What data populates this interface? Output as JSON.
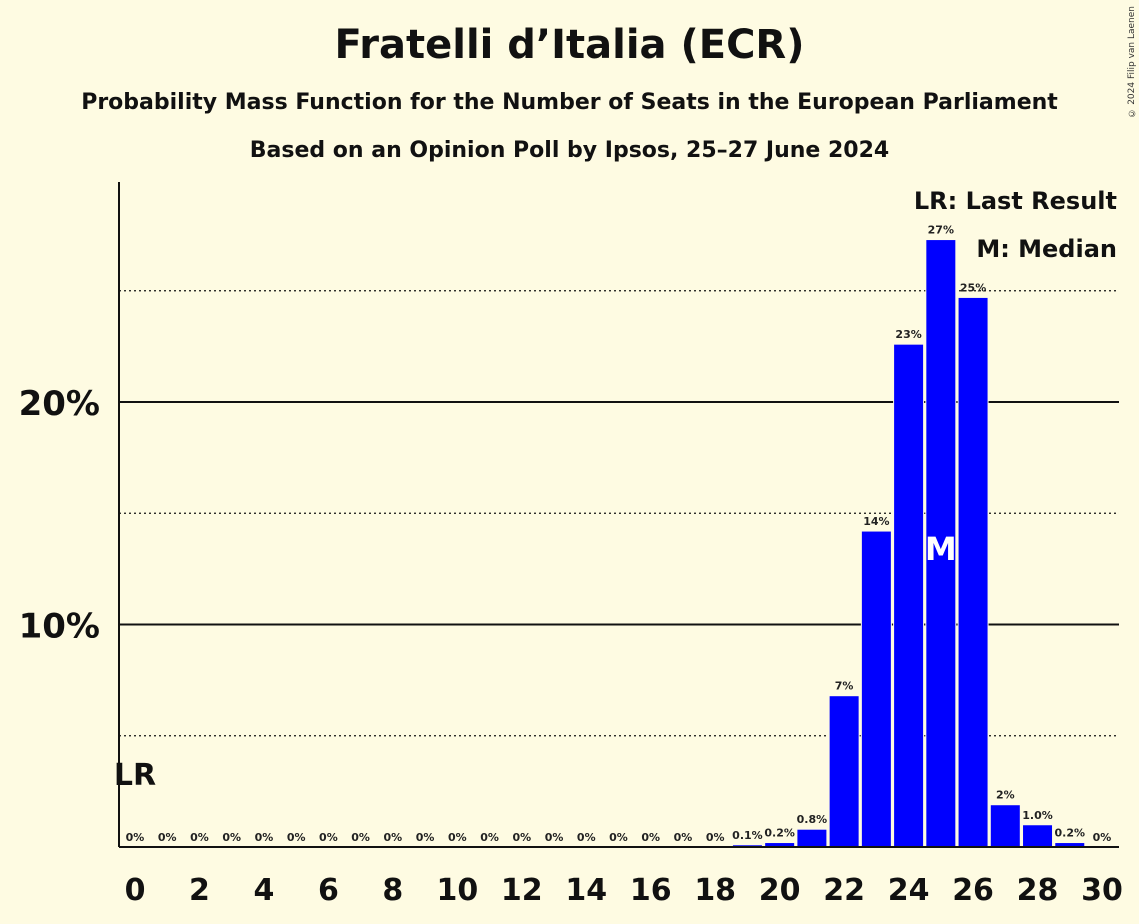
{
  "chart_data": {
    "type": "bar",
    "title": "Fratelli d’Italia (ECR)",
    "subtitle": "Probability Mass Function for the Number of Seats in the European Parliament",
    "subtitle2": "Based on an Opinion Poll by Ipsos, 25–27 June 2024",
    "copyright": "© 2024 Filip van Laenen",
    "x": [
      0,
      1,
      2,
      3,
      4,
      5,
      6,
      7,
      8,
      9,
      10,
      11,
      12,
      13,
      14,
      15,
      16,
      17,
      18,
      19,
      20,
      21,
      22,
      23,
      24,
      25,
      26,
      27,
      28,
      29,
      30
    ],
    "values": [
      0,
      0,
      0,
      0,
      0,
      0,
      0,
      0,
      0,
      0,
      0,
      0,
      0,
      0,
      0,
      0,
      0,
      0,
      0,
      0.1,
      0.2,
      0.8,
      6.8,
      14.2,
      22.6,
      27.3,
      24.7,
      1.9,
      1.0,
      0.2,
      0
    ],
    "data_labels": [
      "0%",
      "0%",
      "0%",
      "0%",
      "0%",
      "0%",
      "0%",
      "0%",
      "0%",
      "0%",
      "0%",
      "0%",
      "0%",
      "0%",
      "0%",
      "0%",
      "0%",
      "0%",
      "0%",
      "0.1%",
      "0.2%",
      "0.8%",
      "7%",
      "14%",
      "23%",
      "27%",
      "25%",
      "2%",
      "1.0%",
      "0.2%",
      "0%"
    ],
    "xticks": [
      0,
      2,
      4,
      6,
      8,
      10,
      12,
      14,
      16,
      18,
      20,
      22,
      24,
      26,
      28,
      30
    ],
    "yticks": [
      {
        "value": 10,
        "label": "10%"
      },
      {
        "value": 20,
        "label": "20%"
      }
    ],
    "minor_gridlines": [
      5,
      15,
      25
    ],
    "ylim": [
      0,
      30
    ],
    "xlabel": "",
    "ylabel": "",
    "bar_color": "#0000ff",
    "last_result": {
      "seat": 0,
      "label": "LR"
    },
    "median": {
      "seat": 25,
      "label": "M"
    },
    "legend": [
      "LR: Last Result",
      "M: Median"
    ],
    "legend_placement": "top-right"
  }
}
